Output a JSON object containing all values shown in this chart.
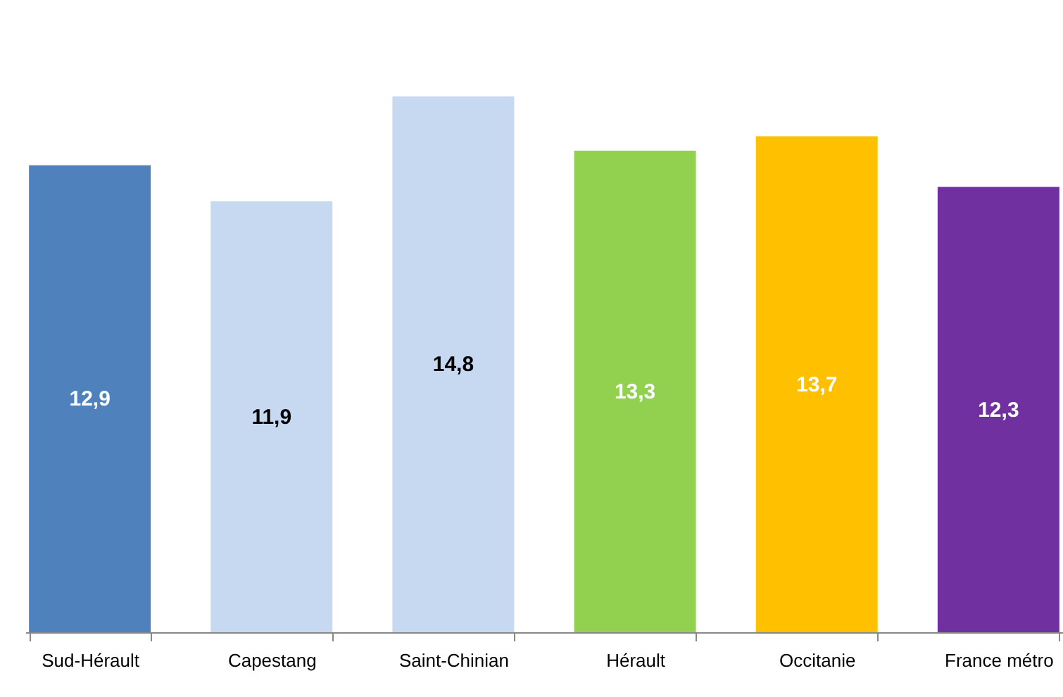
{
  "chart_data": {
    "type": "bar",
    "categories": [
      "Sud-Hérault",
      "Capestang",
      "Saint-Chinian",
      "Hérault",
      "Occitanie",
      "France métro"
    ],
    "values": [
      12.9,
      11.9,
      14.8,
      13.3,
      13.7,
      12.3
    ],
    "colors": [
      "#4f81bd",
      "#c6d9f1",
      "#c6d9f1",
      "#92d050",
      "#ffc000",
      "#7030a0"
    ],
    "value_labels": [
      "12,9",
      "11,9",
      "14,8",
      "13,3",
      "13,7",
      "12,3"
    ],
    "grid": false
  }
}
